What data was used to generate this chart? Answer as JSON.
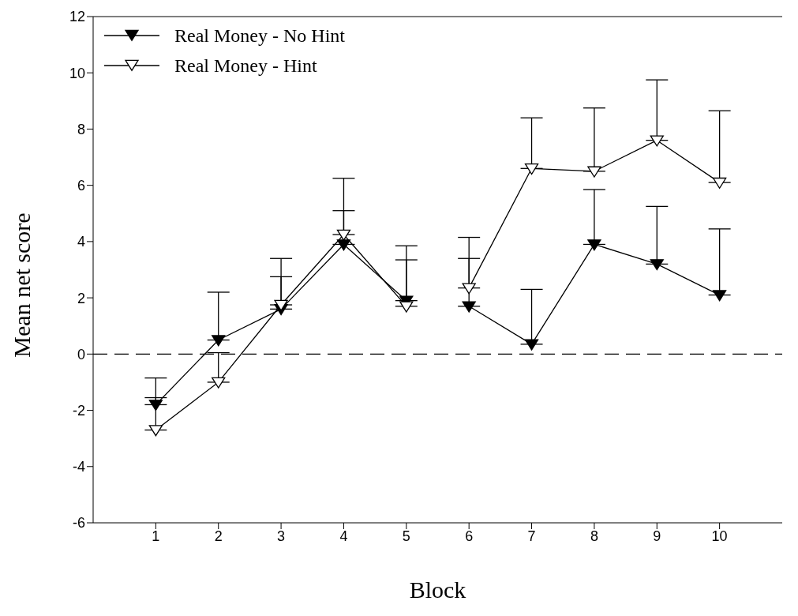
{
  "chart_data": {
    "type": "line",
    "xlabel": "Block",
    "ylabel": "Mean net score",
    "x": [
      1,
      2,
      3,
      4,
      5,
      5.5,
      6,
      7,
      8,
      9,
      10
    ],
    "series": [
      {
        "name": "Real Money - No Hint",
        "color": "#000000",
        "values": [
          -1.8,
          0.5,
          1.6,
          3.9,
          1.9,
          null,
          1.7,
          0.35,
          3.9,
          3.2,
          2.1
        ],
        "errors": [
          [
            -1.8,
            -0.85
          ],
          [
            0.5,
            2.2
          ],
          [
            1.6,
            2.75
          ],
          [
            3.9,
            5.1
          ],
          [
            1.9,
            3.35
          ],
          null,
          [
            1.7,
            3.4
          ],
          [
            0.35,
            2.3
          ],
          [
            3.9,
            5.85
          ],
          [
            3.2,
            5.25
          ],
          [
            2.1,
            4.45
          ]
        ]
      },
      {
        "name": "Real Money - Hint",
        "color": "#ffffff",
        "values": [
          -2.7,
          -1.0,
          1.75,
          4.25,
          1.7,
          null,
          2.35,
          6.6,
          6.5,
          7.6,
          6.1
        ],
        "errors": [
          [
            -2.7,
            -1.55
          ],
          [
            -1.0,
            0.05
          ],
          [
            1.75,
            3.4
          ],
          [
            4.25,
            6.25
          ],
          [
            1.7,
            3.85
          ],
          null,
          [
            2.35,
            4.15
          ],
          [
            6.6,
            8.4
          ],
          [
            6.5,
            8.75
          ],
          [
            7.6,
            9.75
          ],
          [
            6.1,
            8.65
          ]
        ]
      }
    ],
    "xlim": [
      0,
      11
    ],
    "xticks": [
      1,
      2,
      3,
      4,
      5,
      6,
      7,
      8,
      9,
      10
    ],
    "ylim": [
      -6,
      12
    ],
    "yticks": [
      -6,
      -4,
      -2,
      0,
      2,
      4,
      6,
      8,
      10,
      12
    ],
    "ref_lines": [
      {
        "axis": "y",
        "value": 0,
        "line_style": "dashed"
      }
    ],
    "marker": "triangle",
    "line_style": "solid",
    "legend": "top left"
  }
}
